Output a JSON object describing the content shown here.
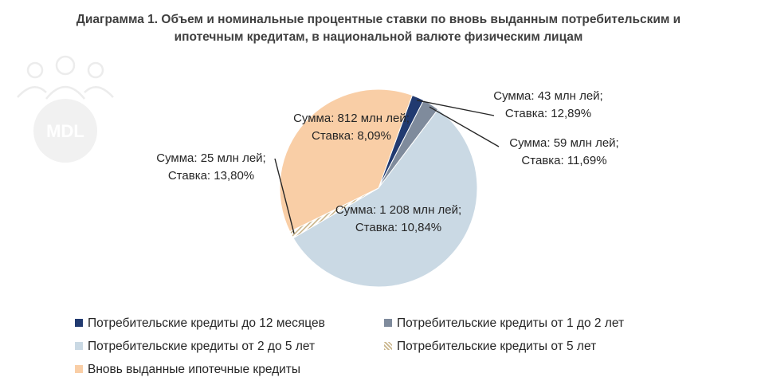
{
  "title": {
    "line1": "Диаграмма 1. Объем и номинальные процентные ставки по вновь выданным потребительским и",
    "line2": "ипотечным кредитам, в национальной валюте физическим лицам"
  },
  "watermark": {
    "text": "MDL",
    "icon": "people-icon"
  },
  "chart_data": {
    "type": "pie",
    "title": "Диаграмма 1. Объем и номинальные процентные ставки по вновь выданным потребительским и ипотечным кредитам, в национальной валюте физическим лицам",
    "legend_position": "bottom",
    "slices": [
      {
        "name": "Потребительские кредиты до 12 месяцев",
        "value": 43,
        "rate": 12.89,
        "color": "#213a70",
        "pattern": "solid",
        "label_line1": "Сумма:  43 млн лей;",
        "label_line2": "Ставка: 12,89%"
      },
      {
        "name": "Потребительские кредиты от 1 до 2 лет",
        "value": 59,
        "rate": 11.69,
        "color": "#7f8b9c",
        "pattern": "solid",
        "label_line1": "Сумма:  59 млн лей;",
        "label_line2": "Ставка: 11,69%"
      },
      {
        "name": "Потребительские кредиты от 2 до 5 лет",
        "value": 1208,
        "rate": 10.84,
        "color": "#cad9e4",
        "pattern": "solid",
        "label_line1": "Сумма:  1 208 млн лей;",
        "label_line2": "Ставка: 10,84%"
      },
      {
        "name": "Потребительские кредиты от 5 лет",
        "value": 25,
        "rate": 13.8,
        "color": "#c9b48a",
        "pattern": "hatch",
        "label_line1": "Сумма:  25 млн лей;",
        "label_line2": "Ставка: 13,80%"
      },
      {
        "name": "Вновь выданные ипотечные кредиты",
        "value": 812,
        "rate": 8.09,
        "color": "#f9cea6",
        "pattern": "solid",
        "label_line1": "Сумма:  812 млн лей;",
        "label_line2": "Ставка: 8,09%"
      }
    ]
  }
}
